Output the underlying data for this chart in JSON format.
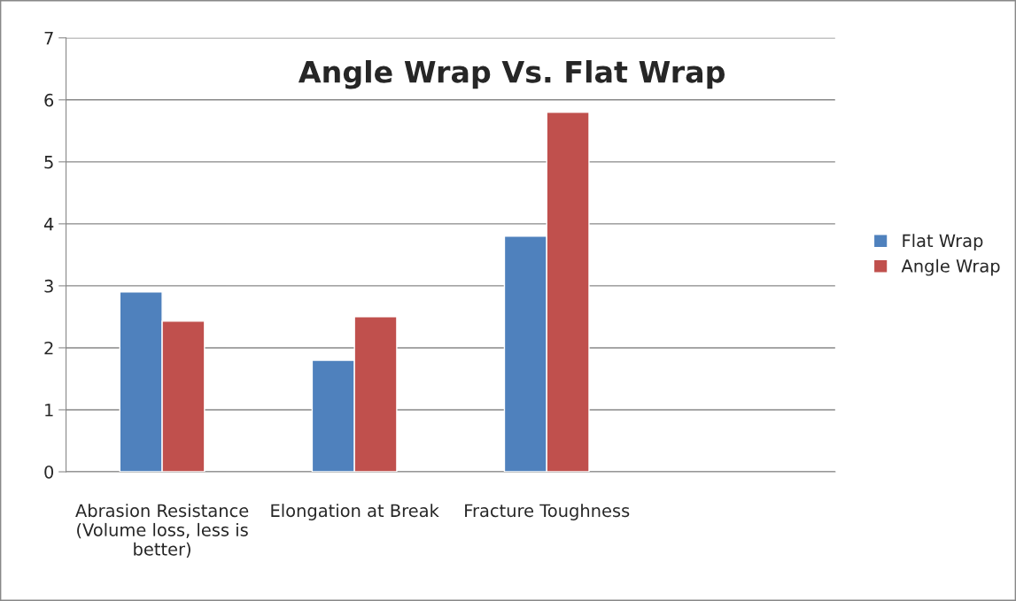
{
  "chart_data": {
    "type": "bar",
    "title": "Angle Wrap Vs. Flat Wrap",
    "categories": [
      "Abrasion Resistance\n(Volume loss, less is\nbetter)",
      "Elongation at Break",
      "Fracture Toughness",
      null
    ],
    "series": [
      {
        "name": "Flat Wrap",
        "color": "#4f81bd",
        "values": [
          2.9,
          1.8,
          3.8,
          null
        ]
      },
      {
        "name": "Angle Wrap",
        "color": "#c0504d",
        "values": [
          2.43,
          2.5,
          5.8,
          null
        ]
      }
    ],
    "ylim": [
      0,
      7
    ],
    "yticks": [
      0,
      1,
      2,
      3,
      4,
      5,
      6,
      7
    ],
    "grid": "y",
    "legend": "right"
  }
}
